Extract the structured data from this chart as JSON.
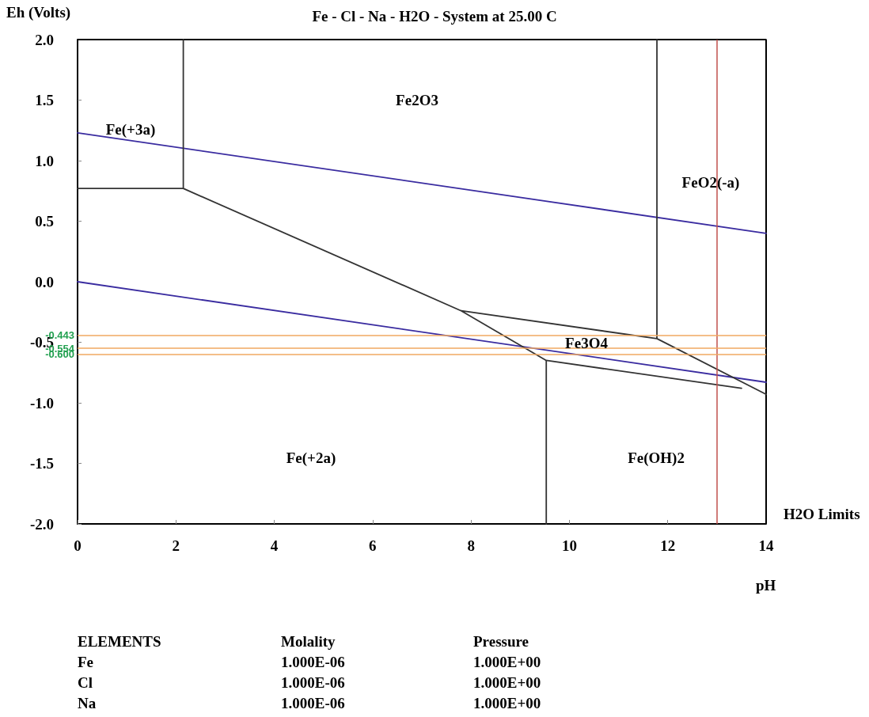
{
  "chart_data": {
    "type": "line",
    "title": "Fe - Cl - Na - H2O - System at 25.00 C",
    "xlabel": "pH",
    "ylabel": "Eh (Volts)",
    "xlim": [
      0,
      14
    ],
    "xticks": [
      0,
      2,
      4,
      6,
      8,
      10,
      12,
      14
    ],
    "ylim": [
      -2.0,
      2.0
    ],
    "yticks": [
      {
        "value": -2.0,
        "label": "-2.0"
      },
      {
        "value": -1.5,
        "label": "-1.5"
      },
      {
        "value": -1.0,
        "label": "-1.0"
      },
      {
        "value": -0.5,
        "label": "-0.5"
      },
      {
        "value": 0.0,
        "label": "0.0"
      },
      {
        "value": 0.5,
        "label": "0.5"
      },
      {
        "value": 1.0,
        "label": "1.0"
      },
      {
        "value": 1.5,
        "label": "1.5"
      },
      {
        "value": 2.0,
        "label": "2.0"
      }
    ],
    "grid": false,
    "marker": "none",
    "line_style": "solid",
    "series": [
      {
        "color": "#3a2ca0",
        "x": [
          0,
          14
        ],
        "values": [
          1.23,
          0.4
        ]
      },
      {
        "color": "#3a2ca0",
        "x": [
          0,
          14
        ],
        "values": [
          0.0,
          -0.83
        ]
      },
      {
        "color": "#333333",
        "x": [
          0,
          2.15,
          2.15,
          null,
          2.15,
          7.8,
          9.53,
          9.53,
          null,
          7.8,
          11.78,
          11.78,
          null,
          11.78,
          14,
          null,
          9.53,
          13.5
        ],
        "values": [
          0.77,
          0.77,
          2.0,
          null,
          0.77,
          -0.24,
          -0.65,
          -2.0,
          null,
          -0.24,
          -0.47,
          2.0,
          null,
          -0.47,
          -0.93,
          null,
          -0.65,
          -0.88
        ]
      }
    ],
    "ref_lines": [
      {
        "axis": "x",
        "value": 13,
        "color": "#c0504d"
      },
      {
        "axis": "y",
        "value": -0.443,
        "label": "-0.443",
        "color": "#f0a860"
      },
      {
        "axis": "y",
        "value": -0.554,
        "label": "-0.554",
        "color": "#f0a860"
      },
      {
        "axis": "y",
        "value": -0.6,
        "label": "-0.600",
        "color": "#f0a860"
      }
    ],
    "annotations": [
      "H2O Limits",
      "Fe(+3a)",
      "Fe2O3",
      "FeO2(-a)",
      "Fe3O4",
      "Fe(+2a)",
      "Fe(OH)2",
      "ELEMENTS",
      "Molality",
      "Pressure",
      "Fe",
      "1.000E-06",
      "1.000E+00",
      "Cl",
      "1.000E-06",
      "1.000E+00",
      "Na",
      "1.000E-06",
      "1.000E+00"
    ]
  }
}
